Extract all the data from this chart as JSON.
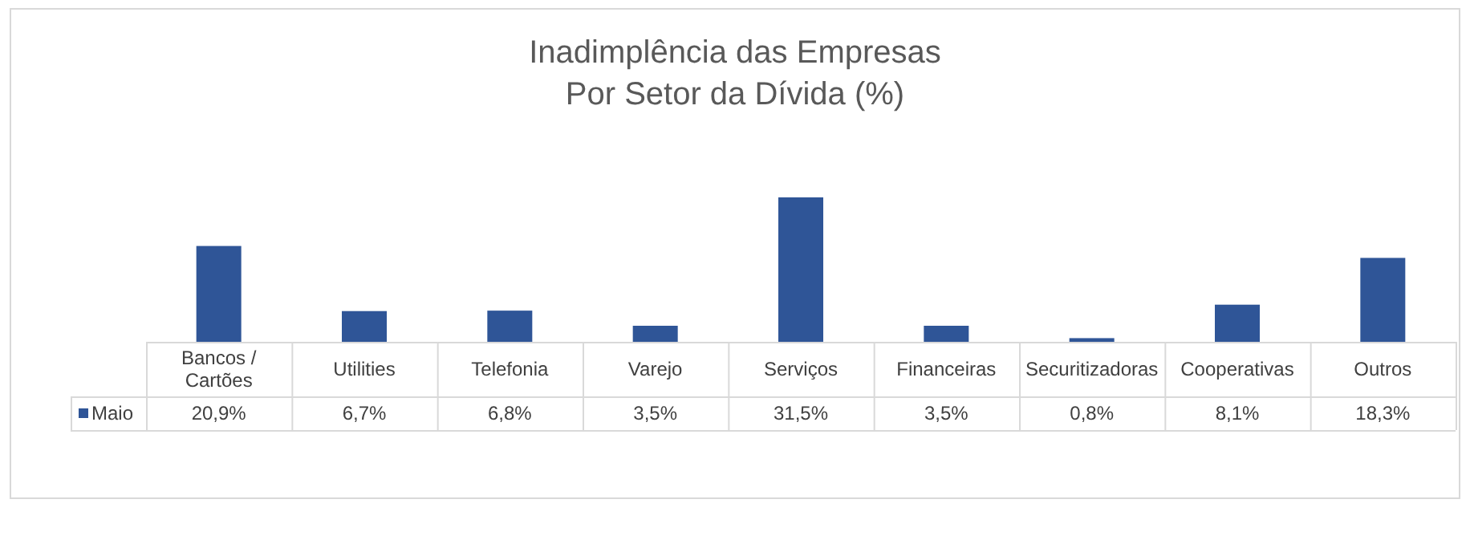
{
  "chart_data": {
    "type": "bar",
    "title": "Inadimplência das Empresas\nPor Setor da Dívida (%)",
    "categories": [
      "Bancos / Cartões",
      "Utilities",
      "Telefonia",
      "Varejo",
      "Serviços",
      "Financeiras",
      "Securitizadoras",
      "Cooperativas",
      "Outros"
    ],
    "series": [
      {
        "name": "Maio",
        "color": "#2f5597",
        "values": [
          20.9,
          6.7,
          6.8,
          3.5,
          31.5,
          3.5,
          0.8,
          8.1,
          18.3
        ],
        "value_labels": [
          "20,9%",
          "6,7%",
          "6,8%",
          "3,5%",
          "31,5%",
          "3,5%",
          "0,8%",
          "8,1%",
          "18,3%"
        ]
      }
    ],
    "legend": "bottom"
  }
}
